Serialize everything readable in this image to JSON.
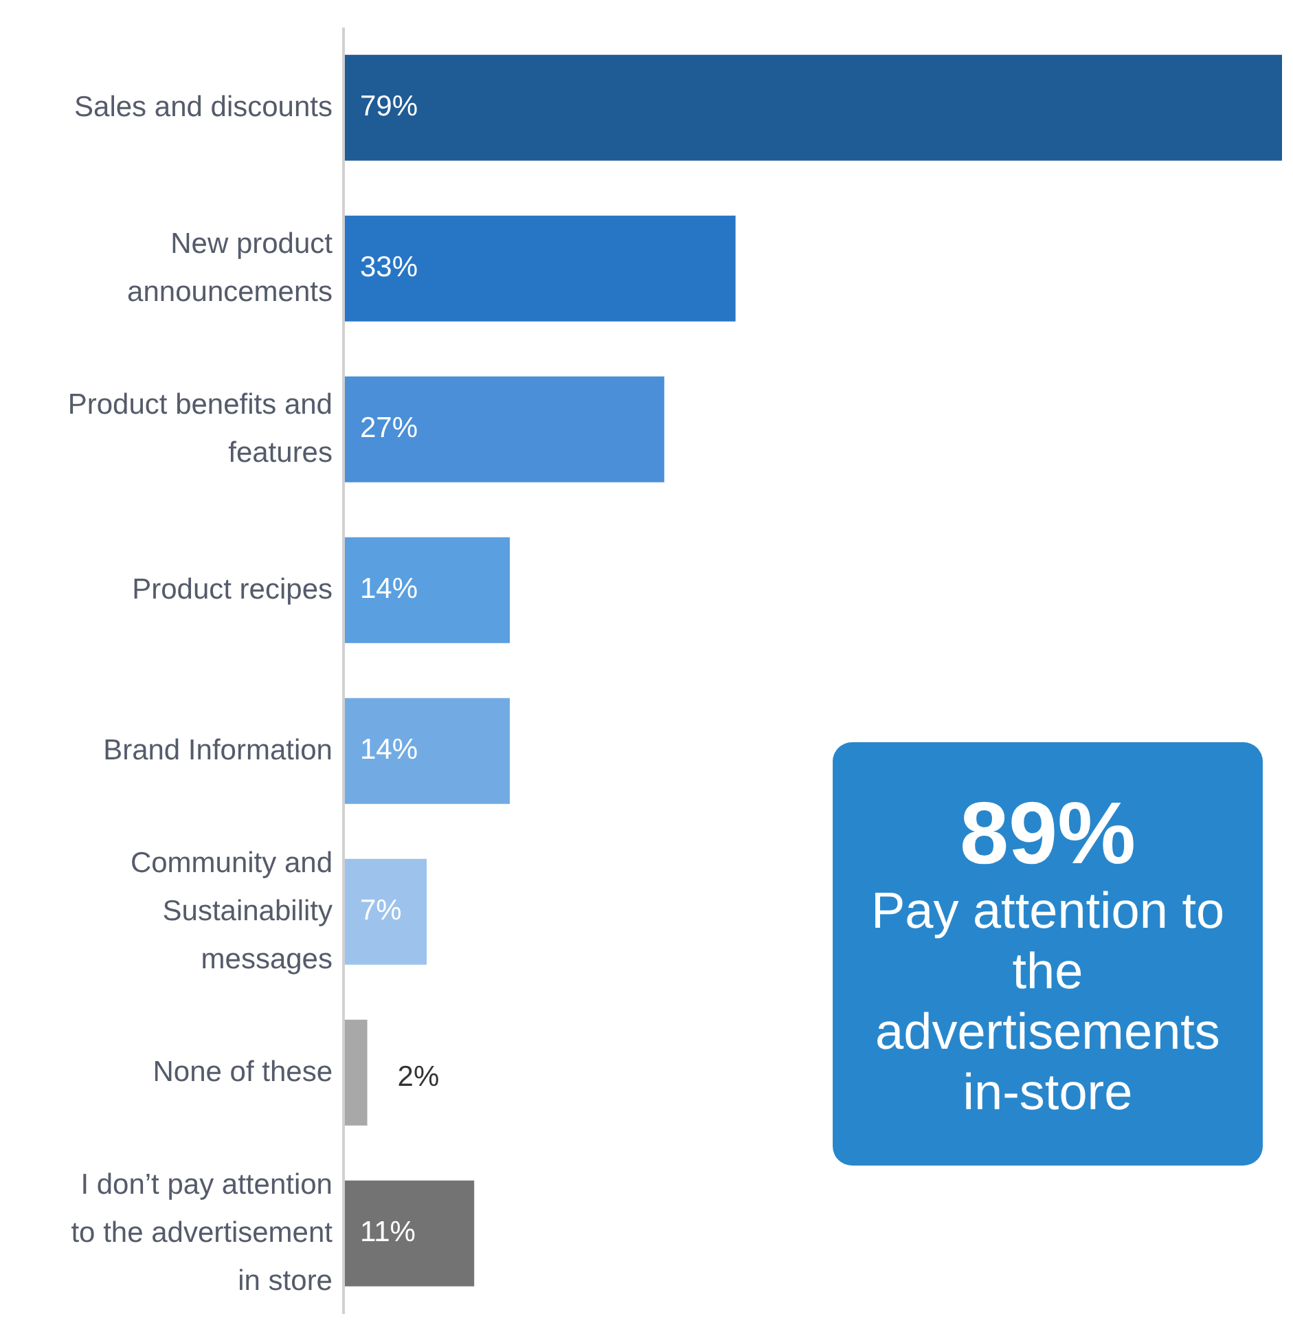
{
  "chart_data": {
    "type": "bar",
    "orientation": "horizontal",
    "categories": [
      "Sales and discounts",
      "New product announcements",
      "Product benefits and features",
      "Product recipes",
      "Brand Information",
      "Community and Sustainability messages",
      "None of these",
      "I don’t pay attention to the advertisement in store"
    ],
    "values": [
      79,
      33,
      27,
      14,
      14,
      7,
      2,
      11
    ],
    "colors": [
      "#1f5b95",
      "#2776c5",
      "#4a8fd7",
      "#5a9fe0",
      "#72abe3",
      "#9dc3ec",
      "#a8a8a8",
      "#737373"
    ],
    "value_labels": [
      "79%",
      "33%",
      "27%",
      "14%",
      "14%",
      "7%",
      "2%",
      "11%"
    ],
    "xlim": [
      0,
      79
    ],
    "tick_labels": "y",
    "annotations": [
      "89%",
      "Pay attention to the advertisements in-store"
    ]
  }
}
